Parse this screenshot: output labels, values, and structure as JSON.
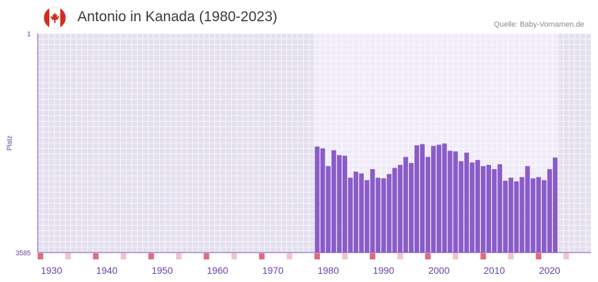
{
  "header": {
    "title": "Antonio in Kanada (1980-2023)",
    "source": "Quelle: Baby-Vornamen.de",
    "flag_icon": "canada-flag-icon"
  },
  "colors": {
    "bar": "#8a5cc8",
    "axis_line": "#7a4fb8",
    "tick_text": "#6b3fa8",
    "bg_outside": "#e4e0ee",
    "bg_inside": "#efebf7",
    "grid": "#ffffff",
    "decade_marker": "#e06c7e",
    "minor_marker": "#f2c4cc",
    "flag_red": "#d52b1e"
  },
  "chart_data": {
    "type": "bar",
    "title": "Antonio in Kanada (1980-2023)",
    "ylabel": "Platz",
    "xlabel": "",
    "y_inverted": true,
    "ylim": [
      1,
      3585
    ],
    "y_tick_labels": [
      "1",
      "3585"
    ],
    "xlim": [
      1928,
      2028
    ],
    "x_tick_labels": [
      "1930",
      "1940",
      "1950",
      "1960",
      "1970",
      "1980",
      "1990",
      "2000",
      "2010",
      "2020"
    ],
    "highlight_range": [
      1978,
      2022
    ],
    "x": [
      1978,
      1979,
      1980,
      1981,
      1982,
      1983,
      1984,
      1985,
      1986,
      1987,
      1988,
      1989,
      1990,
      1991,
      1992,
      1993,
      1994,
      1995,
      1996,
      1997,
      1998,
      1999,
      2000,
      2001,
      2002,
      2003,
      2004,
      2005,
      2006,
      2007,
      2008,
      2009,
      2010,
      2011,
      2012,
      2013,
      2014,
      2015,
      2016,
      2017,
      2018,
      2019,
      2020,
      2021
    ],
    "values": [
      1850,
      1880,
      2170,
      1910,
      1990,
      2000,
      2360,
      2260,
      2290,
      2400,
      2220,
      2360,
      2370,
      2300,
      2200,
      2150,
      2020,
      2120,
      1830,
      1810,
      2020,
      1840,
      1820,
      1800,
      1920,
      1930,
      2090,
      1950,
      2110,
      2070,
      2170,
      2150,
      2220,
      2140,
      2410,
      2360,
      2420,
      2350,
      2170,
      2370,
      2350,
      2400,
      2220,
      2030
    ]
  }
}
